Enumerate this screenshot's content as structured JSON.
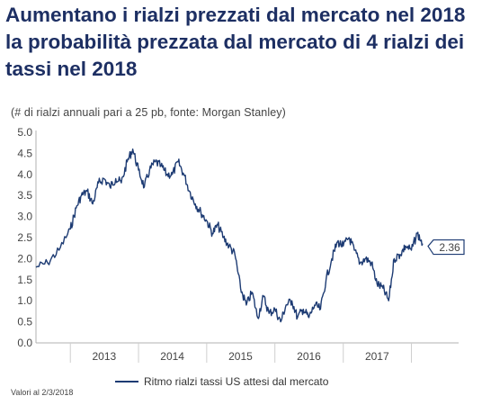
{
  "title": "Aumentano i rialzi prezzati dal mercato nel 2018 la probabilità prezzata dal mercato di 4 rialzi dei tassi nel 2018",
  "subtitle": "(# di rialzi annuali pari a 25 pb, fonte: Morgan Stanley)",
  "legend_label": "Ritmo rialzi tassi US attesi dal mercato",
  "footnote": "Valori al 2/3/2018",
  "colors": {
    "line": "#1d3b73",
    "title": "#1d2f63",
    "axis": "#b0b0b0"
  },
  "chart_data": {
    "type": "line",
    "title": "Aumentano i rialzi prezzati dal mercato nel 2018 la probabilità prezzata dal mercato di 4 rialzi dei tassi nel 2018",
    "subtitle": "(# di rialzi annuali pari a 25 pb, fonte: Morgan Stanley)",
    "ylim": [
      0,
      5
    ],
    "y_ticks": [
      "0.0",
      "0.5",
      "1.0",
      "1.5",
      "2.0",
      "2.5",
      "3.0",
      "3.5",
      "4.0",
      "4.5",
      "5.0"
    ],
    "x_ticks": [
      "2013",
      "2014",
      "2015",
      "2016",
      "2017"
    ],
    "xlim": [
      "2012-07-01",
      "2018-03-02"
    ],
    "grid": false,
    "legend_position": "bottom",
    "last_value_label": "2.36",
    "series": [
      {
        "name": "Ritmo rialzi tassi US attesi dal mercato",
        "x": [
          "2012-07-01",
          "2012-09-01",
          "2012-11-01",
          "2013-01-01",
          "2013-02-01",
          "2013-03-01",
          "2013-04-01",
          "2013-05-01",
          "2013-06-01",
          "2013-07-01",
          "2013-08-01",
          "2013-09-01",
          "2013-10-01",
          "2013-11-01",
          "2013-12-01",
          "2014-01-01",
          "2014-02-01",
          "2014-03-01",
          "2014-04-01",
          "2014-05-01",
          "2014-06-01",
          "2014-07-01",
          "2014-08-01",
          "2014-09-01",
          "2014-10-01",
          "2014-11-01",
          "2014-12-01",
          "2015-01-01",
          "2015-02-01",
          "2015-03-01",
          "2015-04-01",
          "2015-05-01",
          "2015-06-01",
          "2015-07-01",
          "2015-08-01",
          "2015-09-01",
          "2015-10-01",
          "2015-11-01",
          "2015-12-01",
          "2016-01-01",
          "2016-02-01",
          "2016-03-01",
          "2016-04-01",
          "2016-05-01",
          "2016-06-01",
          "2016-07-01",
          "2016-08-01",
          "2016-09-01",
          "2016-10-01",
          "2016-11-01",
          "2016-12-01",
          "2017-01-01",
          "2017-02-01",
          "2017-03-01",
          "2017-04-01",
          "2017-05-01",
          "2017-06-01",
          "2017-07-01",
          "2017-08-01",
          "2017-09-01",
          "2017-10-01",
          "2017-11-01",
          "2017-12-01",
          "2018-01-01",
          "2018-02-01",
          "2018-03-02"
        ],
        "values": [
          1.8,
          1.9,
          2.2,
          2.7,
          3.2,
          3.5,
          3.6,
          3.3,
          3.8,
          3.9,
          3.7,
          3.9,
          3.8,
          4.3,
          4.6,
          4.1,
          3.7,
          4.1,
          4.3,
          4.2,
          4.0,
          4.0,
          4.3,
          4.0,
          3.6,
          3.3,
          3.1,
          2.9,
          2.6,
          2.8,
          2.5,
          2.3,
          2.1,
          1.3,
          0.9,
          1.2,
          0.6,
          1.1,
          0.7,
          0.8,
          0.5,
          0.9,
          1.0,
          0.6,
          0.8,
          0.6,
          0.9,
          0.8,
          1.5,
          2.0,
          2.4,
          2.3,
          2.5,
          2.2,
          1.9,
          2.0,
          1.9,
          1.4,
          1.3,
          1.0,
          2.0,
          2.1,
          2.3,
          2.2,
          2.6,
          2.36
        ]
      }
    ]
  }
}
